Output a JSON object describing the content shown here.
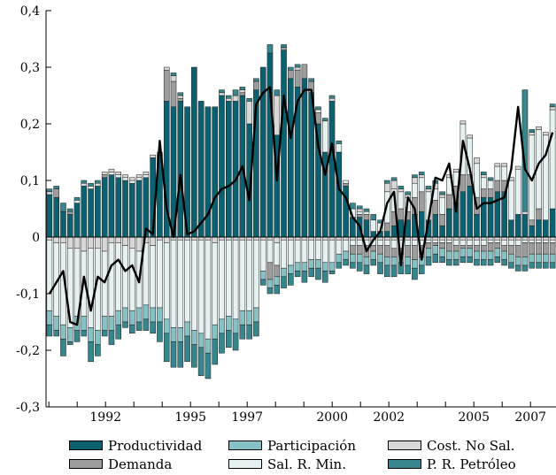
{
  "chart_data": {
    "type": "bar",
    "stacked": true,
    "has_line_overlay": true,
    "title": "",
    "xlabel": "",
    "ylabel": "",
    "ylim": [
      -0.3,
      0.4
    ],
    "y_ticks": [
      "0,4",
      "0,3",
      "0,2",
      "0,1",
      "0",
      "-0,1",
      "-0,2",
      "-0,3"
    ],
    "y_tick_values": [
      0.4,
      0.3,
      0.2,
      0.1,
      0.0,
      -0.1,
      -0.2,
      -0.3
    ],
    "x_ticks": [
      "1992",
      "1995",
      "1997",
      "2000",
      "2002",
      "2005",
      "2007"
    ],
    "x_tick_positions": [
      1992.0,
      1995.0,
      1997.0,
      2000.0,
      2002.0,
      2005.0,
      2007.0
    ],
    "x_start": 1989.9,
    "x_end": 2007.9,
    "grid": false,
    "legend_position": "bottom",
    "line_color": "#000000",
    "series_order": [
      "Productividad",
      "Demanda",
      "Participación",
      "Sal. R. Min.",
      "Cost. No Sal.",
      "P. R. Petróleo"
    ],
    "colors": {
      "Productividad": "#0c6170",
      "Demanda": "#9d9d9d",
      "Participación": "#86c2c5",
      "Sal. R. Min.": "#e6f2f1",
      "Cost. No Sal.": "#d8d8d8",
      "P. R. Petróleo": "#36868d"
    },
    "pos_tops": [
      0.085,
      0.09,
      0.06,
      0.05,
      0.07,
      0.1,
      0.095,
      0.1,
      0.115,
      0.12,
      0.115,
      0.11,
      0.105,
      0.11,
      0.115,
      0.145,
      0.15,
      0.3,
      0.29,
      0.255,
      0.23,
      0.3,
      0.24,
      0.23,
      0.23,
      0.26,
      0.25,
      0.26,
      0.265,
      0.245,
      0.28,
      0.3,
      0.34,
      0.26,
      0.34,
      0.3,
      0.305,
      0.305,
      0.28,
      0.23,
      0.21,
      0.25,
      0.17,
      0.1,
      0.06,
      0.055,
      0.05,
      0.04,
      0.03,
      0.1,
      0.105,
      0.09,
      0.08,
      0.11,
      0.115,
      0.09,
      0.1,
      0.08,
      0.11,
      0.12,
      0.205,
      0.18,
      0.14,
      0.115,
      0.105,
      0.13,
      0.13,
      0.105,
      0.125,
      0.26,
      0.19,
      0.195,
      0.185,
      0.235
    ],
    "line": [
      -0.1,
      -0.08,
      -0.06,
      -0.15,
      -0.155,
      -0.07,
      -0.13,
      -0.07,
      -0.08,
      -0.05,
      -0.04,
      -0.06,
      -0.05,
      -0.08,
      0.015,
      0.005,
      0.17,
      0.05,
      0.0,
      0.11,
      0.005,
      0.01,
      0.025,
      0.04,
      0.07,
      0.085,
      0.09,
      0.1,
      0.125,
      0.065,
      0.235,
      0.255,
      0.265,
      0.1,
      0.25,
      0.175,
      0.24,
      0.26,
      0.26,
      0.16,
      0.11,
      0.165,
      0.085,
      0.07,
      0.035,
      0.02,
      -0.025,
      -0.005,
      0.01,
      0.06,
      0.08,
      -0.05,
      0.07,
      0.05,
      -0.04,
      0.03,
      0.105,
      0.1,
      0.13,
      0.045,
      0.17,
      0.12,
      0.05,
      0.06,
      0.06,
      0.065,
      0.07,
      0.12,
      0.23,
      0.12,
      0.1,
      0.13,
      0.145,
      0.185
    ],
    "series": [
      {
        "name": "Productividad",
        "values": [
          0.075,
          0.07,
          0.045,
          0.04,
          0.06,
          0.09,
          0.085,
          0.09,
          0.105,
          0.11,
          0.105,
          0.1,
          0.095,
          0.1,
          0.105,
          0.14,
          0.145,
          0.24,
          0.23,
          0.24,
          0.23,
          0.3,
          0.24,
          0.23,
          0.23,
          0.25,
          0.24,
          0.24,
          0.25,
          0.2,
          0.26,
          0.3,
          0.325,
          0.18,
          0.33,
          0.28,
          0.265,
          0.28,
          0.255,
          0.2,
          0.15,
          0.24,
          0.15,
          0.09,
          0.035,
          0.035,
          0.03,
          0.01,
          0.01,
          0.01,
          0.02,
          0.03,
          0.03,
          0.04,
          0.045,
          0.03,
          0.04,
          0.02,
          0.05,
          0.06,
          0.08,
          0.09,
          0.04,
          0.07,
          0.07,
          0.08,
          0.08,
          0.03,
          0.04,
          0.04,
          0.02,
          0.03,
          0.03,
          0.05
        ]
      },
      {
        "name": "Demanda",
        "values": [
          0.0,
          0.015,
          0.0,
          0.005,
          0.0,
          0.0,
          0.0,
          0.0,
          0.005,
          0.0,
          0.0,
          0.0,
          0.0,
          0.0,
          0.0,
          0.0,
          0.0,
          0.055,
          0.045,
          0.005,
          0.0,
          0.0,
          0.0,
          0.0,
          0.0,
          0.0,
          0.0,
          0.0,
          0.005,
          0.0,
          0.015,
          0.0,
          0.0,
          0.0,
          0.005,
          0.015,
          0.03,
          0.025,
          0.02,
          0.02,
          0.0,
          0.0,
          0.0,
          0.005,
          0.0,
          0.005,
          0.01,
          0.0,
          0.0,
          0.015,
          0.025,
          0.02,
          0.015,
          0.03,
          0.035,
          0.0,
          0.025,
          0.02,
          0.025,
          0.03,
          0.03,
          0.02,
          0.03,
          0.015,
          0.015,
          0.02,
          0.02,
          0.0,
          0.0,
          0.0,
          0.01,
          0.02,
          0.0,
          0.0
        ]
      },
      {
        "name": "Participación",
        "values": [
          0.0,
          0.0,
          0.0,
          0.0,
          0.0,
          0.0,
          0.0,
          0.0,
          0.0,
          0.0,
          0.0,
          0.0,
          0.0,
          0.0,
          0.0,
          0.0,
          0.0,
          0.0,
          0.0,
          0.0,
          0.0,
          0.0,
          0.0,
          0.0,
          0.0,
          0.0,
          0.0,
          0.0,
          0.0,
          0.0,
          0.0,
          0.0,
          0.0,
          0.0,
          0.0,
          0.0,
          0.0,
          0.0,
          0.0,
          0.0,
          0.0,
          0.0,
          0.0,
          0.0,
          0.0,
          0.0,
          0.0,
          0.0,
          0.0,
          0.0,
          0.0,
          0.0,
          0.0,
          0.0,
          0.0,
          0.0,
          0.0,
          0.0,
          0.0,
          0.0,
          0.0,
          0.0,
          0.0,
          0.0,
          0.0,
          0.0,
          0.0,
          0.0,
          0.0,
          0.0,
          0.0,
          0.0,
          0.0,
          0.0
        ]
      },
      {
        "name": "Sal. R. Min.",
        "values": [
          0.0,
          0.0,
          0.0,
          0.0,
          0.005,
          0.0,
          0.005,
          0.0,
          0.0,
          0.005,
          0.005,
          0.005,
          0.005,
          0.005,
          0.005,
          0.0,
          0.0,
          0.0,
          0.0,
          0.0,
          0.0,
          0.0,
          0.0,
          0.0,
          0.0,
          0.0,
          0.0,
          0.0,
          0.0,
          0.0,
          0.0,
          0.0,
          0.0,
          0.0,
          0.0,
          0.0,
          0.0,
          0.0,
          0.0,
          0.005,
          0.055,
          0.0,
          0.015,
          0.005,
          0.015,
          0.005,
          0.005,
          0.02,
          0.015,
          0.055,
          0.04,
          0.03,
          0.025,
          0.025,
          0.025,
          0.05,
          0.02,
          0.03,
          0.03,
          0.025,
          0.09,
          0.065,
          0.06,
          0.02,
          0.015,
          0.025,
          0.025,
          0.07,
          0.08,
          0.0,
          0.15,
          0.14,
          0.15,
          0.175
        ]
      },
      {
        "name": "Cost. No Sal.",
        "values": [
          0.005,
          0.0,
          0.0,
          0.0,
          0.0,
          0.005,
          0.0,
          0.005,
          0.005,
          0.005,
          0.005,
          0.005,
          0.005,
          0.005,
          0.005,
          0.005,
          0.005,
          0.005,
          0.01,
          0.005,
          0.0,
          0.0,
          0.0,
          0.0,
          0.0,
          0.005,
          0.005,
          0.01,
          0.005,
          0.04,
          0.0,
          0.0,
          0.0,
          0.07,
          0.0,
          0.0,
          0.005,
          0.0,
          0.0,
          0.0,
          0.0,
          0.005,
          0.0,
          0.0,
          0.0,
          0.005,
          0.0,
          0.0,
          0.0,
          0.015,
          0.015,
          0.005,
          0.005,
          0.01,
          0.005,
          0.005,
          0.01,
          0.005,
          0.005,
          0.005,
          0.005,
          0.005,
          0.01,
          0.005,
          0.0,
          0.005,
          0.005,
          0.005,
          0.005,
          0.005,
          0.005,
          0.005,
          0.005,
          0.005
        ]
      },
      {
        "name": "P. R. Petróleo",
        "values": [
          0.005,
          0.005,
          0.015,
          0.005,
          0.005,
          0.005,
          0.005,
          0.005,
          0.0,
          0.0,
          0.0,
          0.0,
          0.0,
          0.0,
          0.0,
          0.0,
          0.0,
          0.0,
          0.005,
          0.005,
          0.0,
          0.0,
          0.0,
          0.0,
          0.0,
          0.005,
          0.005,
          0.01,
          0.005,
          0.005,
          0.005,
          0.0,
          0.015,
          0.01,
          0.005,
          0.005,
          0.005,
          0.0,
          0.005,
          0.005,
          0.005,
          0.005,
          0.005,
          0.0,
          0.01,
          0.005,
          0.005,
          0.01,
          0.005,
          0.005,
          0.005,
          0.005,
          0.005,
          0.005,
          0.005,
          0.005,
          0.005,
          0.005,
          0.0,
          0.0,
          0.0,
          0.0,
          0.0,
          0.005,
          0.005,
          0.0,
          0.0,
          0.0,
          0.0,
          0.215,
          0.005,
          0.0,
          0.0,
          0.005
        ]
      }
    ],
    "negative_series": [
      {
        "name": "Cost. No Sal.",
        "values": [
          -0.005,
          -0.01,
          -0.01,
          -0.02,
          -0.02,
          -0.025,
          -0.02,
          -0.02,
          -0.025,
          -0.01,
          -0.01,
          -0.015,
          -0.02,
          -0.025,
          -0.01,
          -0.015,
          -0.005,
          -0.01,
          -0.005,
          -0.005,
          -0.005,
          -0.005,
          -0.005,
          -0.005,
          -0.01,
          -0.005,
          -0.005,
          -0.005,
          -0.005,
          -0.005,
          -0.005,
          -0.005,
          -0.005,
          -0.01,
          -0.005,
          -0.005,
          -0.005,
          -0.005,
          -0.005,
          -0.005,
          -0.005,
          -0.005,
          -0.005,
          -0.005,
          -0.005,
          -0.005,
          -0.005,
          -0.005,
          -0.005,
          -0.005,
          -0.005,
          -0.005,
          -0.005,
          -0.005,
          -0.005,
          -0.005,
          -0.005,
          -0.005,
          -0.005,
          -0.005,
          -0.005,
          -0.005,
          -0.005,
          -0.005,
          -0.005,
          -0.005,
          -0.005,
          -0.005,
          -0.005,
          -0.005,
          -0.005,
          -0.005,
          -0.005,
          -0.005
        ]
      },
      {
        "name": "Sal. R. Min.",
        "values": [
          -0.125,
          -0.13,
          -0.145,
          -0.14,
          -0.12,
          -0.115,
          -0.14,
          -0.145,
          -0.115,
          -0.13,
          -0.12,
          -0.11,
          -0.11,
          -0.1,
          -0.11,
          -0.11,
          -0.12,
          -0.135,
          -0.155,
          -0.155,
          -0.145,
          -0.16,
          -0.165,
          -0.175,
          -0.145,
          -0.14,
          -0.135,
          -0.14,
          -0.125,
          -0.125,
          -0.12,
          -0.055,
          -0.04,
          -0.04,
          -0.05,
          -0.045,
          -0.04,
          -0.04,
          -0.035,
          -0.035,
          -0.04,
          -0.04,
          -0.025,
          -0.02,
          -0.01,
          -0.01,
          -0.01,
          -0.01,
          -0.01,
          -0.01,
          -0.015,
          -0.015,
          -0.01,
          -0.01,
          -0.01,
          -0.005,
          -0.005,
          -0.005,
          -0.005,
          -0.01,
          -0.01,
          -0.01,
          -0.01,
          -0.01,
          -0.005,
          -0.005,
          -0.01,
          -0.01,
          -0.01,
          -0.005,
          -0.005,
          -0.005,
          -0.005,
          -0.005
        ]
      },
      {
        "name": "Demanda",
        "values": [
          0.0,
          0.0,
          0.0,
          0.0,
          0.0,
          0.0,
          0.0,
          0.0,
          0.0,
          0.0,
          0.0,
          0.0,
          0.0,
          0.0,
          0.0,
          0.0,
          0.0,
          0.0,
          0.0,
          0.0,
          0.0,
          0.0,
          0.0,
          0.0,
          0.0,
          0.0,
          0.0,
          0.0,
          0.0,
          0.0,
          0.0,
          0.0,
          -0.03,
          -0.02,
          0.0,
          0.0,
          0.0,
          0.0,
          0.0,
          0.0,
          0.0,
          0.0,
          0.0,
          0.0,
          -0.015,
          -0.015,
          -0.02,
          -0.01,
          -0.015,
          -0.02,
          -0.015,
          -0.01,
          -0.02,
          -0.025,
          -0.02,
          -0.01,
          -0.005,
          -0.01,
          -0.015,
          -0.01,
          -0.005,
          -0.005,
          -0.01,
          -0.01,
          -0.015,
          -0.01,
          -0.01,
          -0.015,
          -0.02,
          -0.025,
          -0.02,
          -0.02,
          -0.02,
          -0.02
        ]
      },
      {
        "name": "Participación",
        "values": [
          -0.025,
          -0.025,
          -0.025,
          -0.025,
          -0.025,
          -0.025,
          -0.025,
          -0.025,
          -0.025,
          -0.025,
          -0.025,
          -0.025,
          -0.025,
          -0.025,
          -0.025,
          -0.025,
          -0.025,
          -0.025,
          -0.025,
          -0.025,
          -0.025,
          -0.025,
          -0.025,
          -0.025,
          -0.025,
          -0.025,
          -0.025,
          -0.025,
          -0.025,
          -0.025,
          -0.025,
          -0.015,
          -0.015,
          -0.015,
          -0.015,
          -0.015,
          -0.015,
          -0.015,
          -0.015,
          -0.015,
          -0.015,
          -0.015,
          -0.015,
          -0.015,
          -0.015,
          -0.015,
          -0.015,
          -0.015,
          -0.015,
          -0.015,
          -0.015,
          -0.015,
          -0.015,
          -0.015,
          -0.015,
          -0.015,
          -0.015,
          -0.015,
          -0.015,
          -0.015,
          -0.015,
          -0.015,
          -0.015,
          -0.015,
          -0.015,
          -0.015,
          -0.015,
          -0.015,
          -0.015,
          -0.015,
          -0.015,
          -0.015,
          -0.015,
          -0.015
        ]
      },
      {
        "name": "P. R. Petróleo",
        "values": [
          -0.02,
          -0.01,
          -0.03,
          -0.005,
          -0.02,
          -0.01,
          -0.035,
          -0.02,
          -0.01,
          -0.025,
          -0.025,
          -0.01,
          -0.015,
          -0.015,
          -0.02,
          -0.02,
          -0.035,
          -0.05,
          -0.045,
          -0.045,
          -0.045,
          -0.04,
          -0.05,
          -0.045,
          -0.045,
          -0.035,
          -0.03,
          -0.03,
          -0.025,
          -0.025,
          -0.025,
          -0.01,
          -0.01,
          -0.015,
          -0.02,
          -0.02,
          -0.01,
          -0.02,
          -0.015,
          -0.02,
          -0.02,
          -0.005,
          -0.01,
          -0.01,
          -0.01,
          -0.015,
          -0.015,
          -0.01,
          -0.02,
          -0.02,
          -0.02,
          -0.02,
          -0.015,
          -0.02,
          -0.015,
          -0.015,
          -0.015,
          -0.01,
          -0.01,
          -0.01,
          -0.01,
          -0.01,
          -0.01,
          -0.01,
          -0.01,
          -0.01,
          -0.01,
          -0.01,
          -0.01,
          -0.01,
          -0.01,
          -0.01,
          -0.01,
          -0.01
        ]
      }
    ]
  },
  "legend": {
    "items": [
      {
        "label": "Productividad",
        "color": "#0c6170"
      },
      {
        "label": "Participación",
        "color": "#86c2c5"
      },
      {
        "label": "Cost. No Sal.",
        "color": "#d8d8d8"
      },
      {
        "label": "Demanda",
        "color": "#9d9d9d"
      },
      {
        "label": "Sal. R. Min.",
        "color": "#e6f2f1"
      },
      {
        "label": "P. R. Petróleo",
        "color": "#36868d"
      }
    ]
  }
}
